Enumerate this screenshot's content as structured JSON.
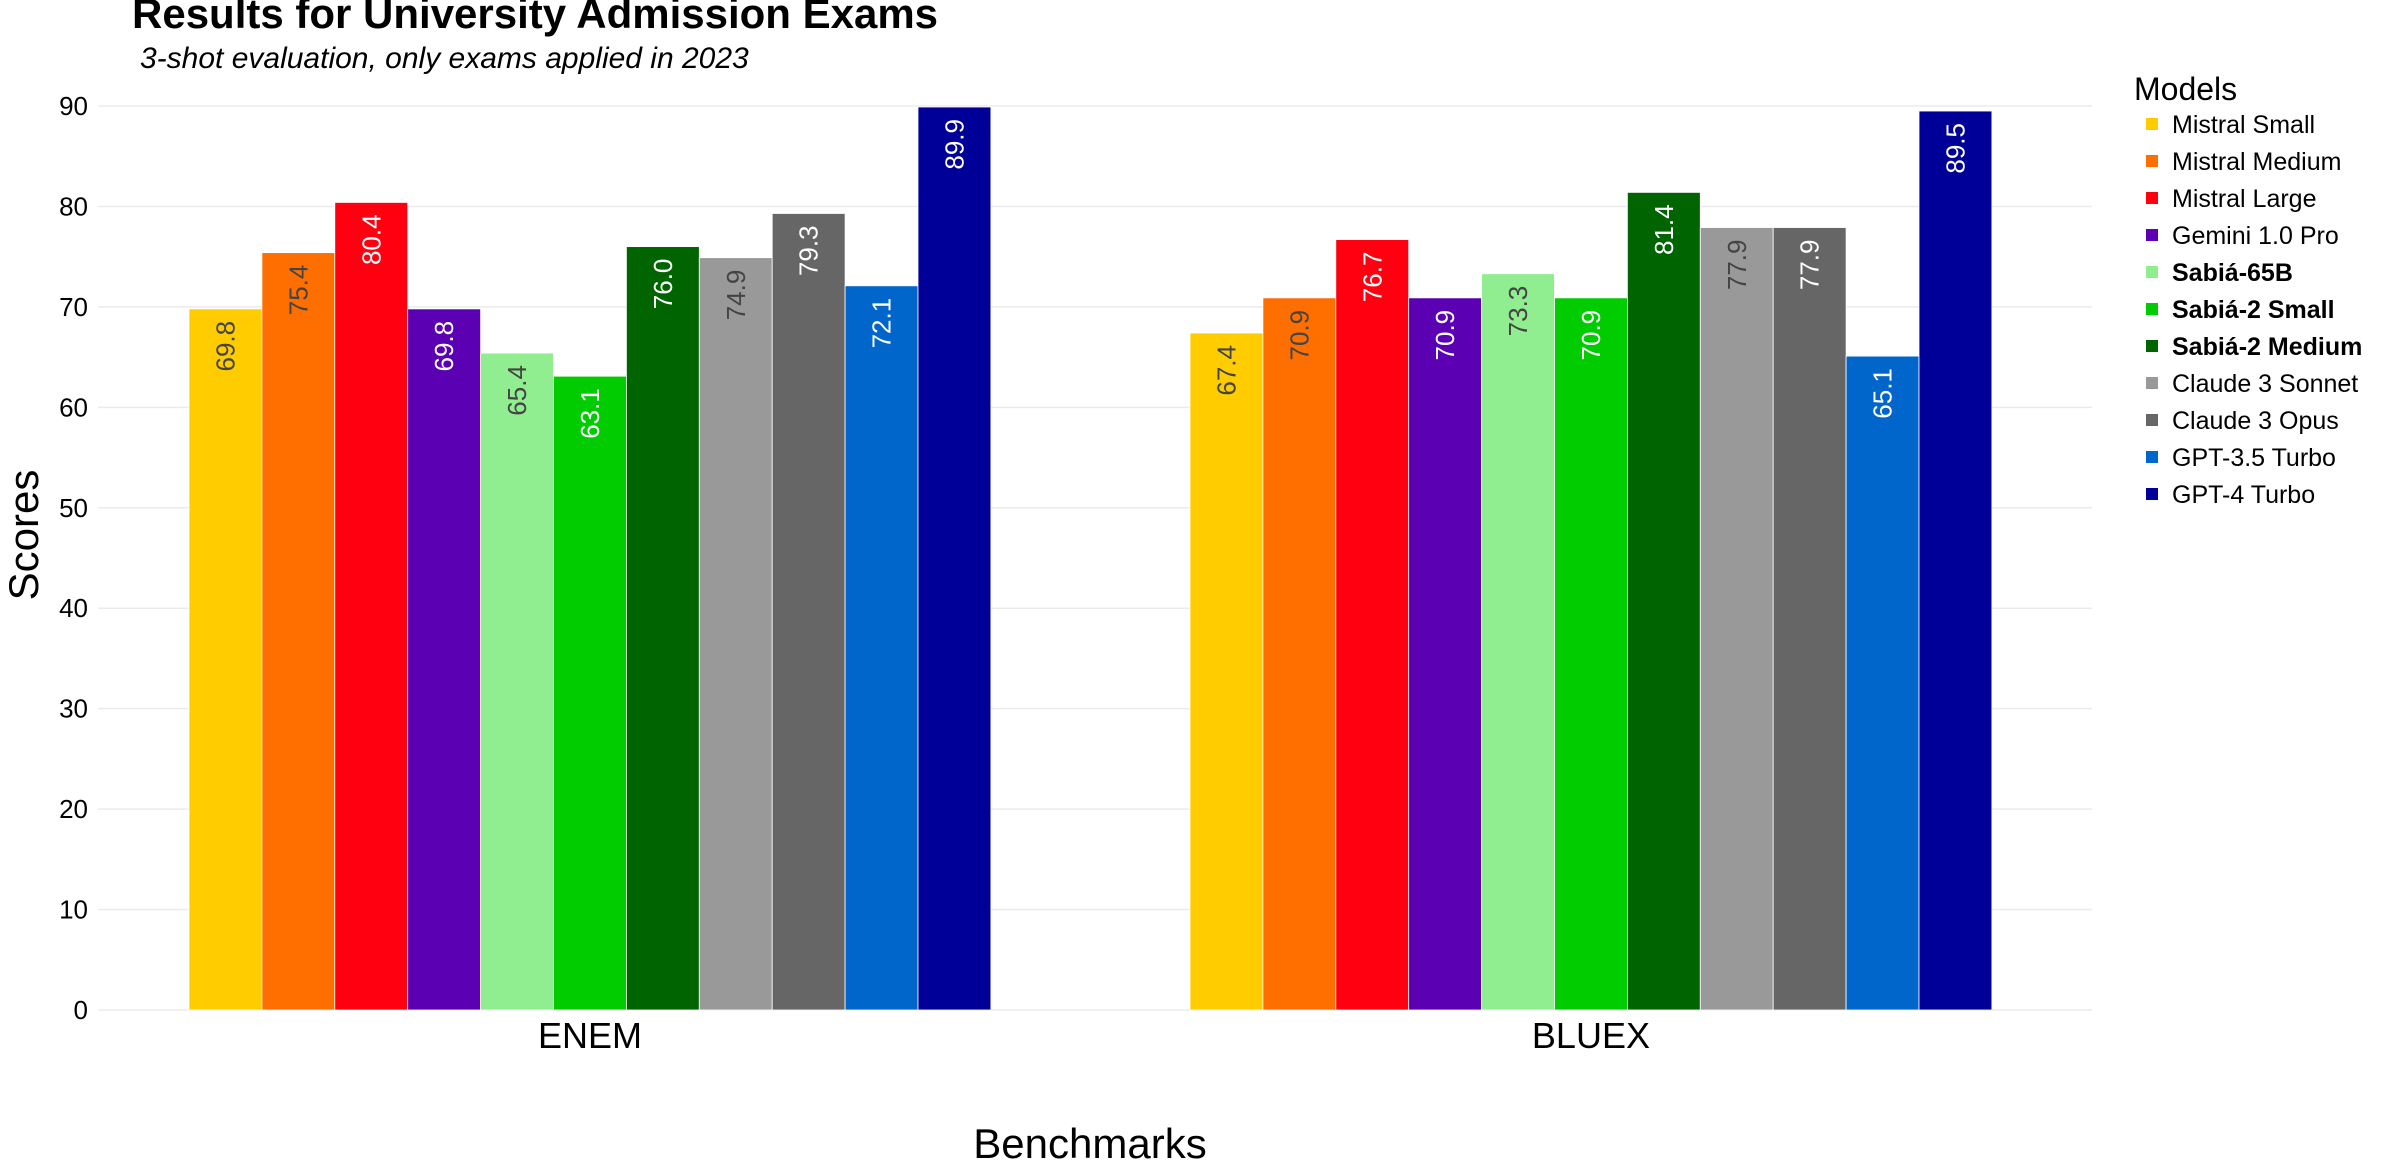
{
  "chart_data": {
    "type": "bar",
    "title": "Results for University Admission Exams",
    "subtitle": "3-shot evaluation, only exams applied in 2023",
    "xlabel": "Benchmarks",
    "ylabel": "Scores",
    "ylim": [
      0,
      90
    ],
    "yticks": [
      0,
      10,
      20,
      30,
      40,
      50,
      60,
      70,
      80,
      90
    ],
    "grid": true,
    "legend_title": "Models",
    "legend_position": "right",
    "categories": [
      "ENEM",
      "BLUEX"
    ],
    "series": [
      {
        "name": "Mistral Small",
        "color": "#ffcc00",
        "bold": false,
        "label_color": "#444444",
        "values": [
          69.8,
          67.4
        ]
      },
      {
        "name": "Mistral Medium",
        "color": "#ff6f00",
        "bold": false,
        "label_color": "#444444",
        "values": [
          75.4,
          70.9
        ]
      },
      {
        "name": "Mistral Large",
        "color": "#ff0010",
        "bold": false,
        "label_color": "#ffffff",
        "values": [
          80.4,
          76.7
        ]
      },
      {
        "name": "Gemini 1.0 Pro",
        "color": "#5b00b3",
        "bold": false,
        "label_color": "#ffffff",
        "values": [
          69.8,
          70.9
        ]
      },
      {
        "name": "Sabiá-65B",
        "color": "#90ee90",
        "bold": true,
        "label_color": "#444444",
        "values": [
          65.4,
          73.3
        ]
      },
      {
        "name": "Sabiá-2 Small",
        "color": "#00cc00",
        "bold": true,
        "label_color": "#ffffff",
        "values": [
          63.1,
          70.9
        ]
      },
      {
        "name": "Sabiá-2 Medium",
        "color": "#006400",
        "bold": true,
        "label_color": "#ffffff",
        "values": [
          76.0,
          81.4
        ]
      },
      {
        "name": "Claude 3 Sonnet",
        "color": "#999999",
        "bold": false,
        "label_color": "#444444",
        "values": [
          74.9,
          77.9
        ]
      },
      {
        "name": "Claude 3 Opus",
        "color": "#666666",
        "bold": false,
        "label_color": "#ffffff",
        "values": [
          79.3,
          77.9
        ]
      },
      {
        "name": "GPT-3.5 Turbo",
        "color": "#0066cc",
        "bold": false,
        "label_color": "#ffffff",
        "values": [
          72.1,
          65.1
        ]
      },
      {
        "name": "GPT-4 Turbo",
        "color": "#000099",
        "bold": false,
        "label_color": "#ffffff",
        "values": [
          89.9,
          89.5
        ]
      }
    ]
  }
}
